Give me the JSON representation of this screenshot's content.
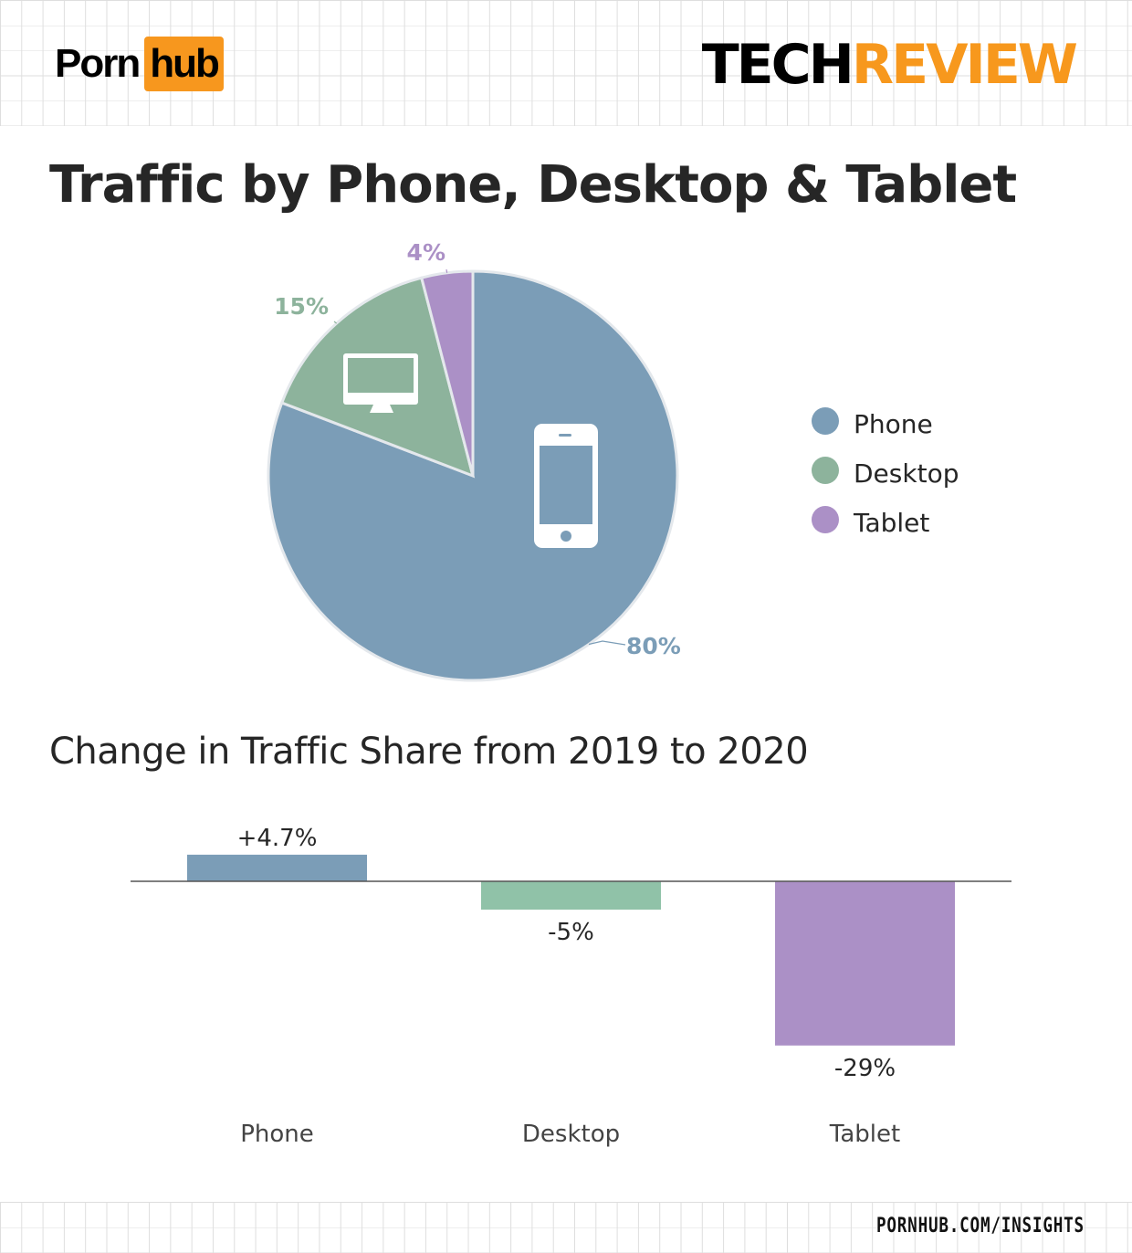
{
  "header": {
    "logo_left": "Porn",
    "logo_right": "hub",
    "brand_left": "TECH",
    "brand_right": "REVIEW"
  },
  "footer": {
    "url": "PORNHUB.COM/INSIGHTS"
  },
  "colors": {
    "phone": "#7b9db7",
    "desktop": "#8db39c",
    "tablet": "#ab90c6",
    "desktop_bar": "#90c2a8",
    "accent": "#f7981d"
  },
  "chart_data": [
    {
      "type": "pie",
      "title": "Traffic by Phone, Desktop & Tablet",
      "categories": [
        "Phone",
        "Desktop",
        "Tablet"
      ],
      "values": [
        80,
        15,
        4
      ],
      "labels": [
        "80%",
        "15%",
        "4%"
      ],
      "icons": [
        "phone-icon",
        "desktop-icon",
        ""
      ],
      "legend": {
        "placement": "right",
        "entries": [
          "Phone",
          "Desktop",
          "Tablet"
        ]
      }
    },
    {
      "type": "bar",
      "title": "Change in Traffic Share from 2019 to 2020",
      "categories": [
        "Phone",
        "Desktop",
        "Tablet"
      ],
      "values": [
        4.7,
        -5,
        -29
      ],
      "labels": [
        "+4.7%",
        "-5%",
        "-29%"
      ],
      "grid": false
    }
  ]
}
